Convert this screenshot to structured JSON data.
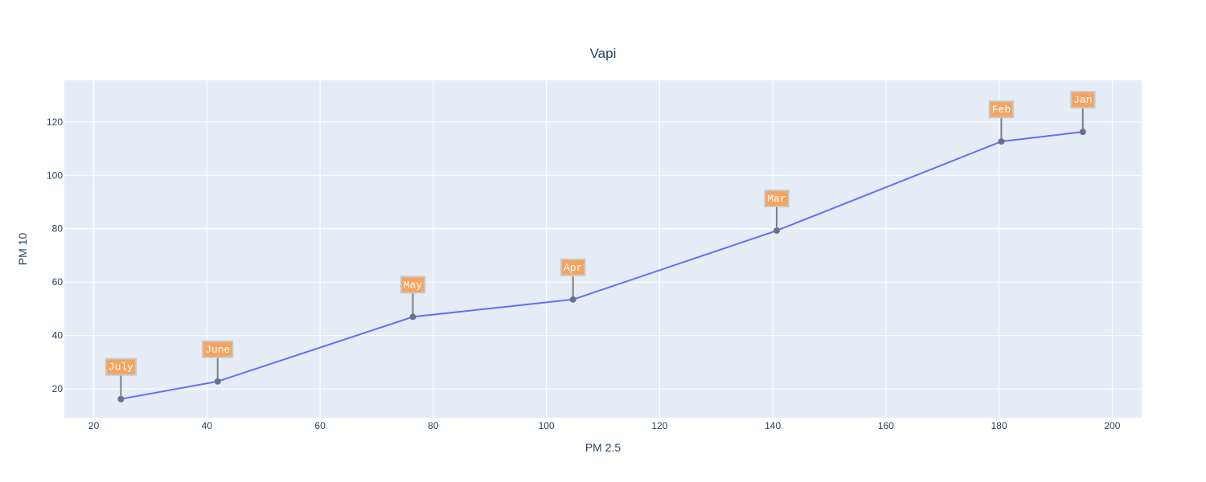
{
  "chart_data": {
    "type": "line",
    "title": "Vapi",
    "xlabel": "PM 2.5",
    "ylabel": "PM 10",
    "xlim": [
      14.8,
      205.2
    ],
    "ylim": [
      9.2,
      135.6
    ],
    "xticks": [
      20,
      40,
      60,
      80,
      100,
      120,
      140,
      160,
      180,
      200
    ],
    "yticks": [
      20,
      40,
      60,
      80,
      100,
      120
    ],
    "grid": true,
    "colors": {
      "line": "#636efa",
      "marker": "#67718c",
      "plot_bg": "#e5ecf6",
      "annotation_bg": "#f4a460",
      "annotation_border": "#c8c8c8",
      "arrow": "#7f7f7f"
    },
    "points": [
      {
        "label": "July",
        "x": 24.8,
        "y": 16.2
      },
      {
        "label": "June",
        "x": 41.9,
        "y": 22.8
      },
      {
        "label": "May",
        "x": 76.4,
        "y": 47.0
      },
      {
        "label": "Apr",
        "x": 104.7,
        "y": 53.5
      },
      {
        "label": "Mar",
        "x": 140.7,
        "y": 79.3
      },
      {
        "label": "Feb",
        "x": 180.4,
        "y": 112.7
      },
      {
        "label": "Jan",
        "x": 194.8,
        "y": 116.3
      }
    ]
  }
}
